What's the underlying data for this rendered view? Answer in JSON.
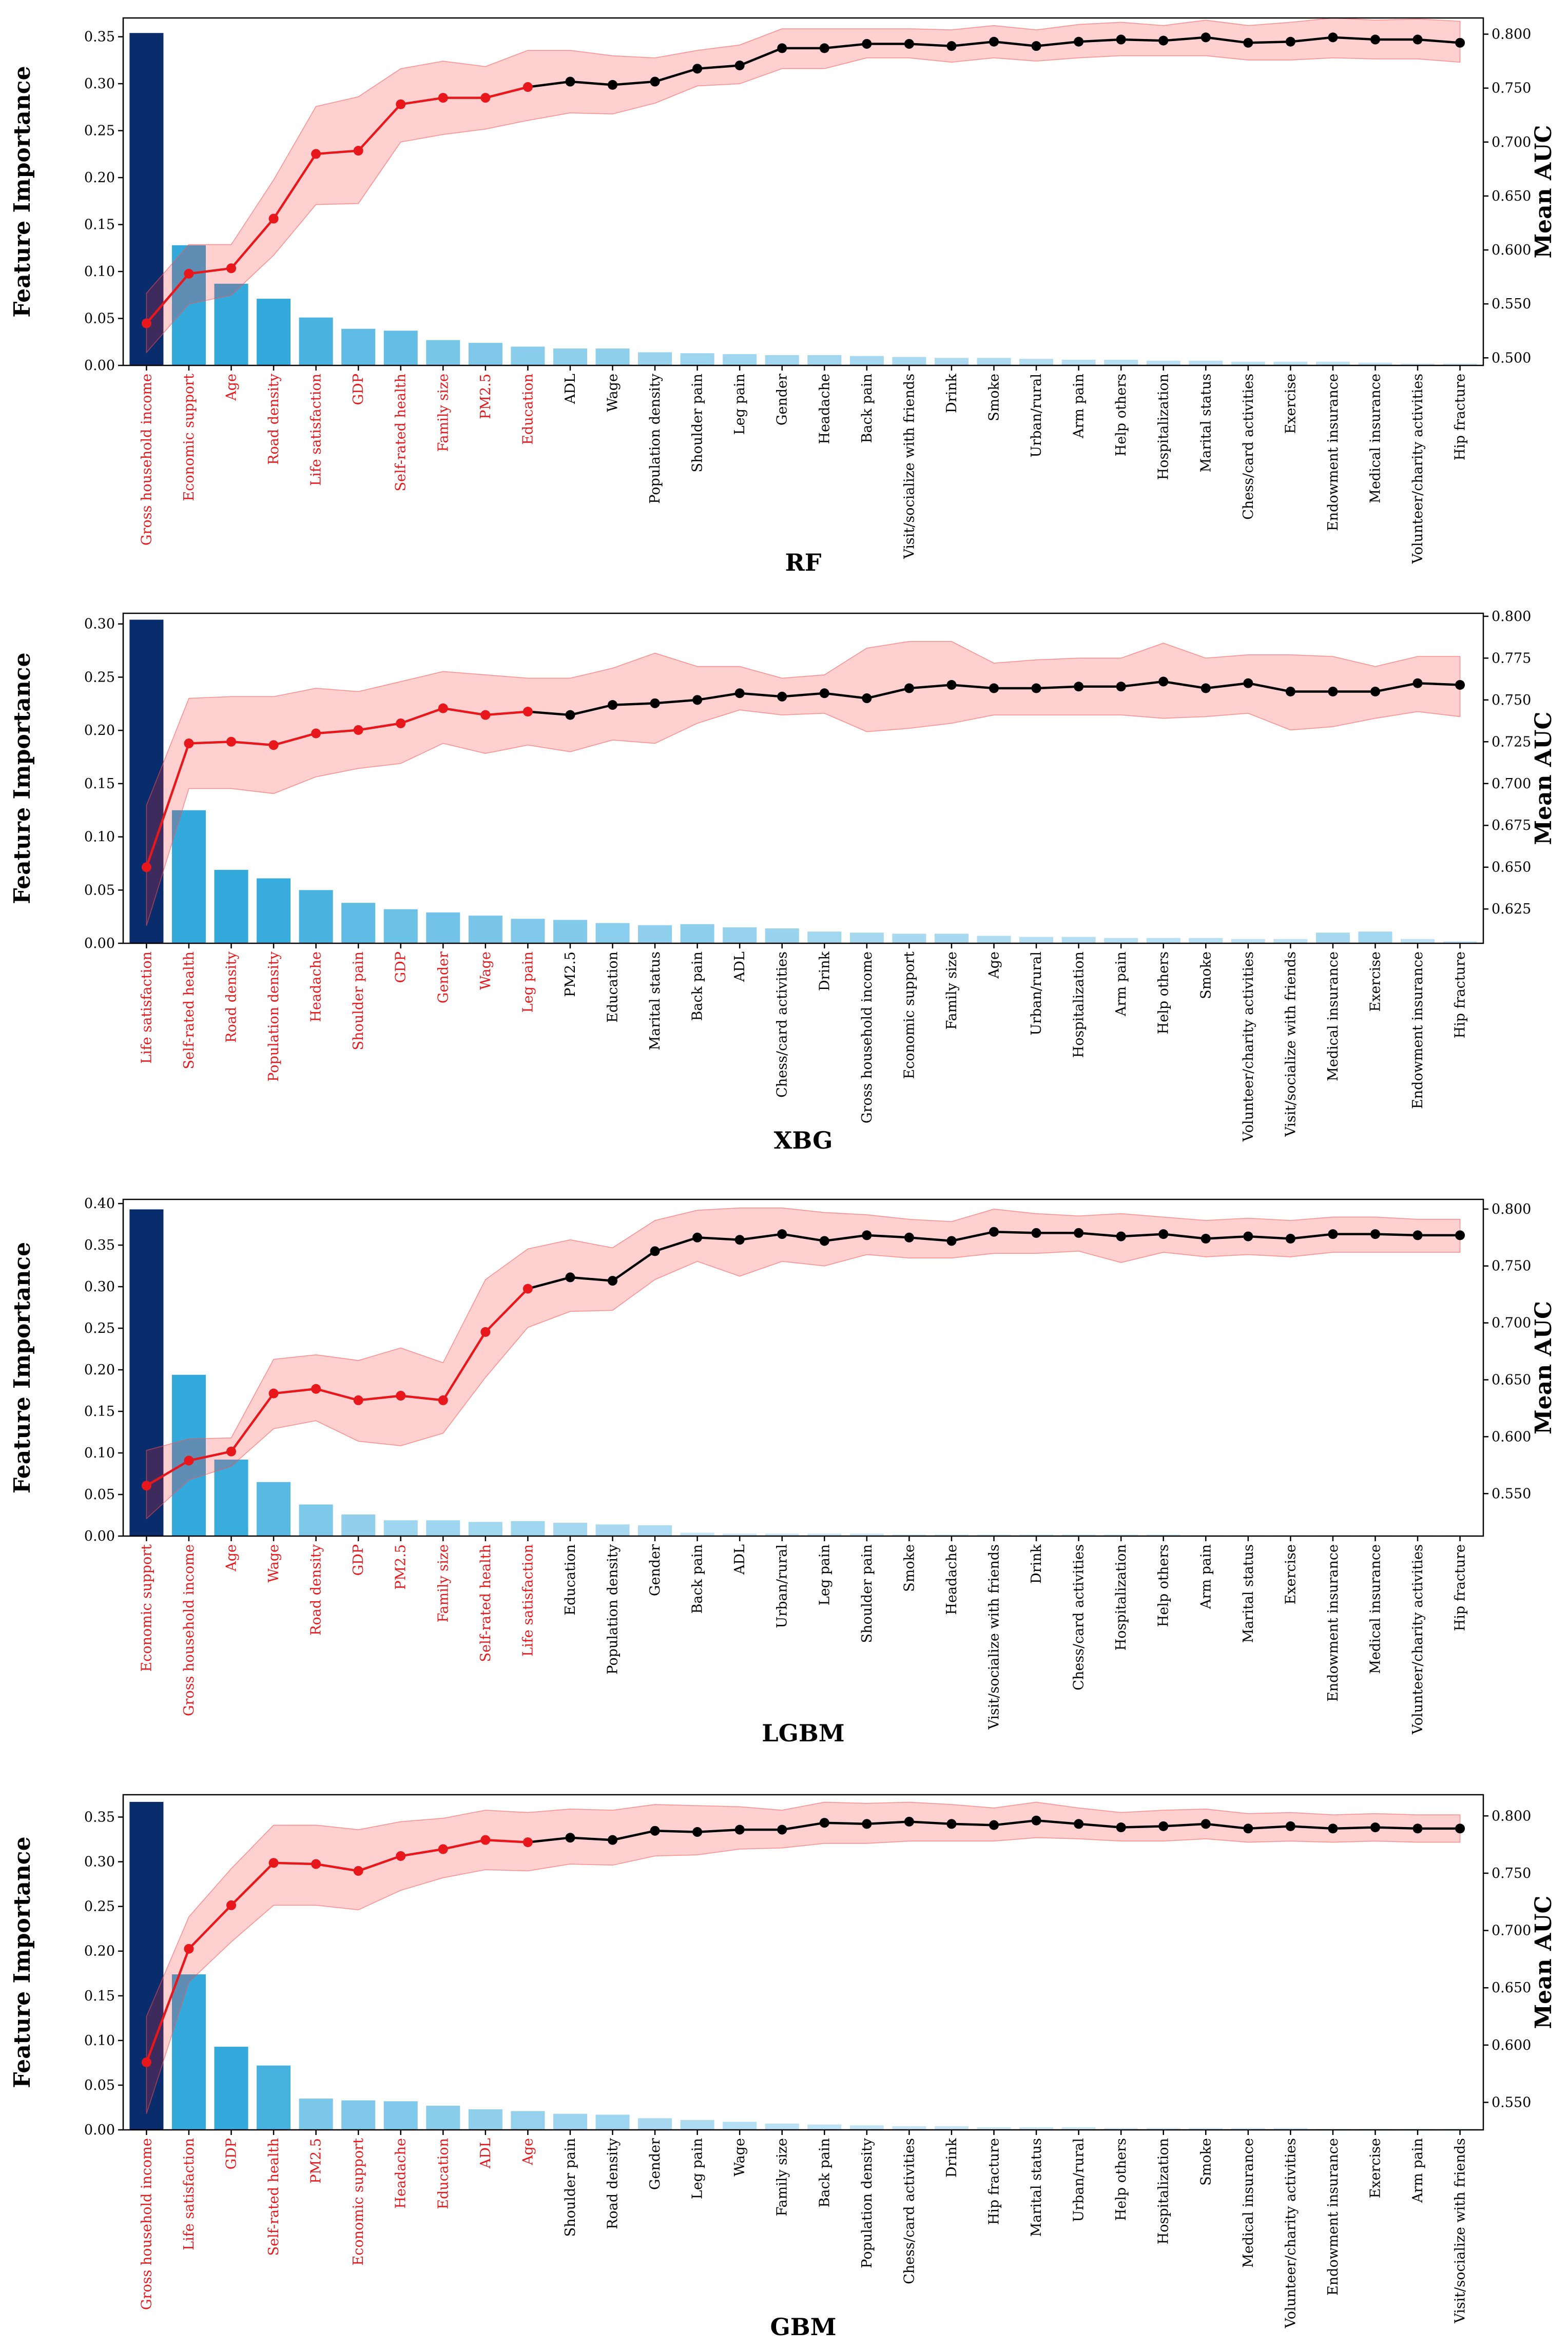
{
  "chart_data": [
    {
      "type": "bar",
      "title": "RF",
      "ylabel": "Feature Importance",
      "y2label": "Mean AUC",
      "ylim": [
        0,
        0.37
      ],
      "yticks": [
        "0.00",
        "0.05",
        "0.10",
        "0.15",
        "0.20",
        "0.25",
        "0.30",
        "0.35"
      ],
      "y2lim": [
        0.493,
        0.815
      ],
      "y2ticks": [
        "0.500",
        "0.550",
        "0.600",
        "0.650",
        "0.700",
        "0.750",
        "0.800"
      ],
      "red_count": 10,
      "categories": [
        "Gross household income",
        "Economic support",
        "Age",
        "Road density",
        "Life satisfaction",
        "GDP",
        "Self-rated health",
        "Family size",
        "PM2.5",
        "Education",
        "ADL",
        "Wage",
        "Population density",
        "Shoulder pain",
        "Leg pain",
        "Gender",
        "Headache",
        "Back pain",
        "Visit/socialize with friends",
        "Drink",
        "Smoke",
        "Urban/rural",
        "Arm pain",
        "Help others",
        "Hospitalization",
        "Marital status",
        "Chess/card activities",
        "Exercise",
        "Endowment insurance",
        "Medical insurance",
        "Volunteer/charity activities",
        "Hip fracture"
      ],
      "values": [
        0.354,
        0.128,
        0.087,
        0.071,
        0.051,
        0.039,
        0.037,
        0.027,
        0.024,
        0.02,
        0.018,
        0.018,
        0.014,
        0.013,
        0.012,
        0.011,
        0.011,
        0.01,
        0.009,
        0.008,
        0.008,
        0.007,
        0.006,
        0.006,
        0.005,
        0.005,
        0.004,
        0.004,
        0.004,
        0.003,
        0.002,
        0.002
      ],
      "auc": [
        0.532,
        0.578,
        0.583,
        0.629,
        0.689,
        0.692,
        0.735,
        0.741,
        0.741,
        0.751,
        0.756,
        0.753,
        0.756,
        0.768,
        0.771,
        0.787,
        0.787,
        0.791,
        0.791,
        0.789,
        0.793,
        0.789,
        0.793,
        0.795,
        0.794,
        0.797,
        0.792,
        0.793,
        0.797,
        0.795,
        0.795,
        0.792
      ],
      "auc_lower": [
        0.505,
        0.55,
        0.558,
        0.595,
        0.642,
        0.643,
        0.7,
        0.707,
        0.712,
        0.72,
        0.727,
        0.726,
        0.736,
        0.752,
        0.754,
        0.768,
        0.768,
        0.778,
        0.778,
        0.774,
        0.778,
        0.775,
        0.778,
        0.78,
        0.78,
        0.78,
        0.776,
        0.776,
        0.778,
        0.777,
        0.777,
        0.774
      ],
      "auc_upper": [
        0.56,
        0.605,
        0.605,
        0.665,
        0.733,
        0.742,
        0.768,
        0.775,
        0.77,
        0.785,
        0.785,
        0.78,
        0.778,
        0.785,
        0.79,
        0.805,
        0.805,
        0.805,
        0.805,
        0.804,
        0.808,
        0.804,
        0.809,
        0.811,
        0.808,
        0.813,
        0.808,
        0.811,
        0.815,
        0.813,
        0.814,
        0.812
      ]
    },
    {
      "type": "bar",
      "title": "XBG",
      "ylabel": "Feature Importance",
      "y2label": "Mean AUC",
      "ylim": [
        0,
        0.31
      ],
      "yticks": [
        "0.00",
        "0.05",
        "0.10",
        "0.15",
        "0.20",
        "0.25",
        "0.30"
      ],
      "y2lim": [
        0.6045,
        0.8018
      ],
      "y2ticks": [
        "0.625",
        "0.650",
        "0.675",
        "0.700",
        "0.725",
        "0.750",
        "0.775",
        "0.800"
      ],
      "red_count": 10,
      "categories": [
        "Life satisfaction",
        "Self-rated health",
        "Road density",
        "Population density",
        "Headache",
        "Shoulder pain",
        "GDP",
        "Gender",
        "Wage",
        "Leg pain",
        "PM2.5",
        "Education",
        "Marital status",
        "Back pain",
        "ADL",
        "Chess/card activities",
        "Drink",
        "Gross household income",
        "Economic support",
        "Family size",
        "Age",
        "Urban/rural",
        "Hospitalization",
        "Arm pain",
        "Help others",
        "Smoke",
        "Volunteer/charity activities",
        "Visit/socialize with friends",
        "Medical insurance",
        "Exercise",
        "Endowment insurance",
        "Hip fracture"
      ],
      "values": [
        0.304,
        0.125,
        0.069,
        0.061,
        0.05,
        0.038,
        0.032,
        0.029,
        0.026,
        0.023,
        0.022,
        0.019,
        0.017,
        0.018,
        0.015,
        0.014,
        0.011,
        0.01,
        0.009,
        0.009,
        0.007,
        0.006,
        0.006,
        0.005,
        0.005,
        0.005,
        0.004,
        0.004,
        0.01,
        0.011,
        0.004,
        0.002
      ],
      "auc": [
        0.65,
        0.724,
        0.725,
        0.723,
        0.73,
        0.732,
        0.736,
        0.745,
        0.741,
        0.743,
        0.741,
        0.747,
        0.748,
        0.75,
        0.754,
        0.752,
        0.754,
        0.751,
        0.757,
        0.759,
        0.757,
        0.757,
        0.758,
        0.758,
        0.761,
        0.757,
        0.76,
        0.755,
        0.755,
        0.755,
        0.76,
        0.759
      ],
      "auc_lower": [
        0.615,
        0.697,
        0.697,
        0.694,
        0.704,
        0.709,
        0.712,
        0.724,
        0.718,
        0.723,
        0.719,
        0.726,
        0.724,
        0.736,
        0.744,
        0.741,
        0.742,
        0.731,
        0.733,
        0.736,
        0.741,
        0.741,
        0.741,
        0.741,
        0.739,
        0.74,
        0.742,
        0.732,
        0.734,
        0.739,
        0.743,
        0.74
      ],
      "auc_upper": [
        0.687,
        0.751,
        0.752,
        0.752,
        0.757,
        0.755,
        0.761,
        0.767,
        0.765,
        0.763,
        0.763,
        0.769,
        0.778,
        0.77,
        0.77,
        0.763,
        0.765,
        0.781,
        0.785,
        0.785,
        0.772,
        0.774,
        0.775,
        0.775,
        0.784,
        0.775,
        0.777,
        0.777,
        0.776,
        0.77,
        0.776,
        0.776
      ]
    },
    {
      "type": "bar",
      "title": "LGBM",
      "ylabel": "Feature Importance",
      "y2label": "Mean AUC",
      "ylim": [
        0,
        0.405
      ],
      "yticks": [
        "0.00",
        "0.05",
        "0.10",
        "0.15",
        "0.20",
        "0.25",
        "0.30",
        "0.35",
        "0.40"
      ],
      "y2lim": [
        0.5127,
        0.8085
      ],
      "y2ticks": [
        "0.550",
        "0.600",
        "0.650",
        "0.700",
        "0.750",
        "0.800"
      ],
      "red_count": 10,
      "categories": [
        "Economic support",
        "Gross household income",
        "Age",
        "Wage",
        "Road density",
        "GDP",
        "PM2.5",
        "Family size",
        "Self-rated health",
        "Life satisfaction",
        "Education",
        "Population density",
        "Gender",
        "Back pain",
        "ADL",
        "Urban/rural",
        "Leg pain",
        "Shoulder pain",
        "Smoke",
        "Headache",
        "Visit/socialize with friends",
        "Drink",
        "Chess/card activities",
        "Hospitalization",
        "Help others",
        "Arm pain",
        "Marital status",
        "Exercise",
        "Endowment insurance",
        "Medical insurance",
        "Volunteer/charity activities",
        "Hip fracture"
      ],
      "values": [
        0.393,
        0.194,
        0.092,
        0.065,
        0.038,
        0.026,
        0.019,
        0.019,
        0.017,
        0.018,
        0.016,
        0.014,
        0.013,
        0.004,
        0.003,
        0.003,
        0.003,
        0.003,
        0.002,
        0.002,
        0.002,
        0.002,
        0.002,
        0.002,
        0.002,
        0.001,
        0.001,
        0.001,
        0.001,
        0.001,
        0.001,
        0.001
      ],
      "auc": [
        0.557,
        0.579,
        0.587,
        0.638,
        0.642,
        0.632,
        0.636,
        0.632,
        0.692,
        0.73,
        0.74,
        0.737,
        0.763,
        0.775,
        0.773,
        0.778,
        0.772,
        0.777,
        0.775,
        0.772,
        0.78,
        0.779,
        0.779,
        0.776,
        0.778,
        0.774,
        0.776,
        0.774,
        0.778,
        0.778,
        0.777,
        0.777
      ],
      "auc_lower": [
        0.528,
        0.562,
        0.574,
        0.607,
        0.614,
        0.596,
        0.592,
        0.603,
        0.652,
        0.696,
        0.71,
        0.711,
        0.738,
        0.754,
        0.741,
        0.754,
        0.75,
        0.76,
        0.757,
        0.757,
        0.761,
        0.761,
        0.763,
        0.753,
        0.762,
        0.758,
        0.76,
        0.758,
        0.762,
        0.762,
        0.762,
        0.762
      ],
      "auc_upper": [
        0.588,
        0.598,
        0.599,
        0.668,
        0.672,
        0.667,
        0.678,
        0.665,
        0.738,
        0.765,
        0.773,
        0.766,
        0.79,
        0.799,
        0.801,
        0.801,
        0.797,
        0.795,
        0.791,
        0.789,
        0.8,
        0.796,
        0.794,
        0.796,
        0.793,
        0.79,
        0.792,
        0.79,
        0.793,
        0.793,
        0.791,
        0.791
      ]
    },
    {
      "type": "bar",
      "title": "GBM",
      "ylabel": "Feature Importance",
      "y2label": "Mean AUC",
      "ylim": [
        0,
        0.375
      ],
      "yticks": [
        "0.00",
        "0.05",
        "0.10",
        "0.15",
        "0.20",
        "0.25",
        "0.30",
        "0.35"
      ],
      "y2lim": [
        0.526,
        0.8185
      ],
      "y2ticks": [
        "0.550",
        "0.600",
        "0.650",
        "0.700",
        "0.750",
        "0.800"
      ],
      "red_count": 10,
      "categories": [
        "Gross household income",
        "Life satisfaction",
        "GDP",
        "Self-rated health",
        "PM2.5",
        "Economic support",
        "Headache",
        "Education",
        "ADL",
        "Age",
        "Shoulder pain",
        "Road density",
        "Gender",
        "Leg pain",
        "Wage",
        "Family size",
        "Back pain",
        "Population density",
        "Chess/card activities",
        "Drink",
        "Hip fracture",
        "Marital status",
        "Urban/rural",
        "Help others",
        "Hospitalization",
        "Smoke",
        "Medical insurance",
        "Volunteer/charity activities",
        "Endowment insurance",
        "Exercise",
        "Arm pain",
        "Visit/socialize with friends"
      ],
      "values": [
        0.367,
        0.174,
        0.093,
        0.072,
        0.035,
        0.033,
        0.032,
        0.027,
        0.023,
        0.021,
        0.018,
        0.017,
        0.013,
        0.011,
        0.009,
        0.007,
        0.006,
        0.005,
        0.004,
        0.004,
        0.003,
        0.003,
        0.003,
        0.002,
        0.002,
        0.002,
        0.002,
        0.002,
        0.001,
        0.001,
        0.001,
        0.001
      ],
      "auc": [
        0.585,
        0.684,
        0.722,
        0.759,
        0.758,
        0.752,
        0.765,
        0.771,
        0.779,
        0.777,
        0.781,
        0.779,
        0.787,
        0.786,
        0.788,
        0.788,
        0.794,
        0.793,
        0.795,
        0.793,
        0.792,
        0.796,
        0.793,
        0.79,
        0.791,
        0.793,
        0.789,
        0.791,
        0.789,
        0.79,
        0.789,
        0.789
      ],
      "auc_lower": [
        0.54,
        0.655,
        0.69,
        0.722,
        0.722,
        0.718,
        0.735,
        0.746,
        0.753,
        0.752,
        0.758,
        0.757,
        0.765,
        0.766,
        0.771,
        0.772,
        0.776,
        0.776,
        0.778,
        0.778,
        0.778,
        0.781,
        0.78,
        0.778,
        0.778,
        0.78,
        0.777,
        0.778,
        0.777,
        0.778,
        0.777,
        0.777
      ],
      "auc_upper": [
        0.625,
        0.712,
        0.754,
        0.792,
        0.792,
        0.788,
        0.795,
        0.798,
        0.805,
        0.803,
        0.806,
        0.805,
        0.81,
        0.809,
        0.808,
        0.805,
        0.812,
        0.811,
        0.812,
        0.81,
        0.807,
        0.812,
        0.807,
        0.803,
        0.805,
        0.806,
        0.802,
        0.803,
        0.801,
        0.802,
        0.801,
        0.801
      ]
    }
  ]
}
